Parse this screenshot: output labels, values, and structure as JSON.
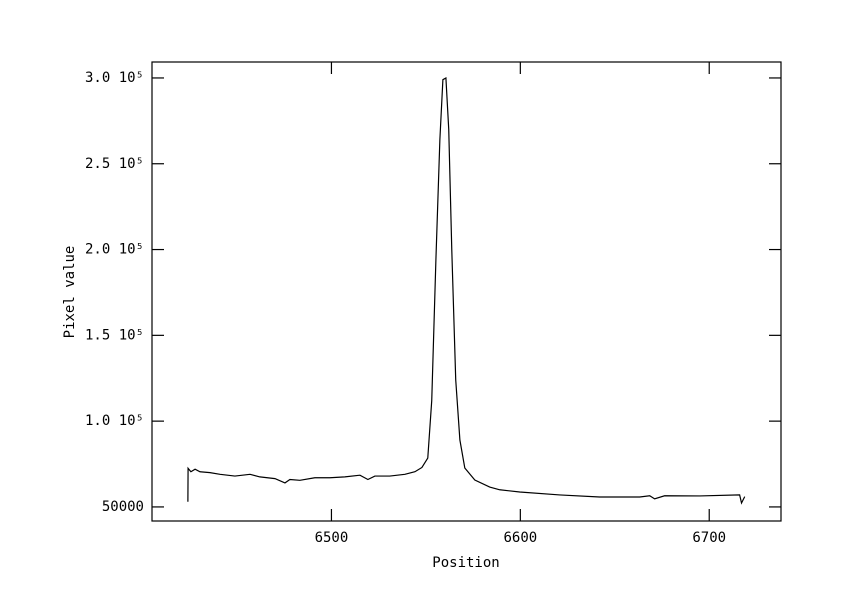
{
  "chart_data": {
    "type": "line",
    "x_label": "Position",
    "y_label": "Pixel value",
    "xlim": [
      6405,
      6738
    ],
    "ylim": [
      41800,
      309300
    ],
    "xticks": [
      6500,
      6600,
      6700
    ],
    "yticks": [
      50000,
      {
        "value": 100000,
        "label": "1.0 10⁵"
      },
      {
        "value": 150000,
        "label": "1.5 10⁵"
      },
      {
        "value": 200000,
        "label": "2.0 10⁵"
      },
      {
        "value": 250000,
        "label": "2.5 10⁵"
      },
      {
        "value": 300000,
        "label": "3.0 10⁵"
      }
    ],
    "color": "#000000",
    "x": [
      6424.0,
      6424.1,
      6425.6,
      6427.8,
      6430.4,
      6435.7,
      6441.0,
      6448.9,
      6456.9,
      6462.1,
      6470.1,
      6475.4,
      6478.0,
      6483.3,
      6491.2,
      6499.2,
      6507.1,
      6515.1,
      6519.3,
      6523.0,
      6530.9,
      6538.9,
      6544.2,
      6547.9,
      6551.0,
      6553.1,
      6555.3,
      6557.4,
      6559.0,
      6560.6,
      6562.1,
      6563.7,
      6565.8,
      6568.0,
      6570.6,
      6575.9,
      6583.8,
      6589.1,
      6599.7,
      6620.9,
      6642.0,
      6663.2,
      6668.5,
      6671.1,
      6676.4,
      6695.0,
      6716.1,
      6717.1,
      6718.8
    ],
    "values": [
      53000,
      72500,
      70500,
      72000,
      70500,
      70000,
      69000,
      68000,
      69000,
      67500,
      66500,
      64000,
      66000,
      65500,
      67000,
      67000,
      67500,
      68500,
      66000,
      68000,
      68000,
      69000,
      70500,
      73000,
      78500,
      112000,
      194000,
      264000,
      299000,
      300000,
      270000,
      200000,
      124000,
      89000,
      72700,
      65700,
      61600,
      60000,
      58700,
      57000,
      55800,
      55800,
      56500,
      54700,
      56500,
      56400,
      57000,
      52300,
      56000
    ]
  }
}
